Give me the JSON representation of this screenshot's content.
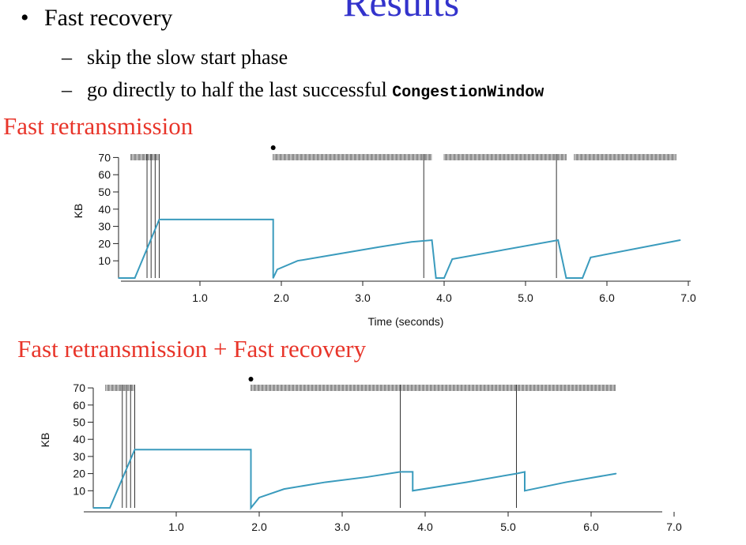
{
  "slide": {
    "title": "Results",
    "bullet": "Fast recovery",
    "sub1": "skip the slow start phase",
    "sub2_prefix": "go directly to half the last successful ",
    "sub2_code": "CongestionWindow",
    "bullet_mark": "•",
    "dash_mark": "–"
  },
  "colors": {
    "heading": "#e8352a",
    "title": "#3333cc",
    "series": "#3a9bbd"
  },
  "chart_data": [
    {
      "type": "line",
      "title": "Fast retransmission",
      "xlabel": "Time (seconds)",
      "ylabel": "KB",
      "xlim": [
        0,
        7.0
      ],
      "ylim": [
        0,
        70
      ],
      "x_ticks": [
        "1.0",
        "2.0",
        "3.0",
        "4.0",
        "5.0",
        "6.0",
        "7.0"
      ],
      "y_ticks": [
        "10",
        "20",
        "30",
        "40",
        "50",
        "60",
        "70"
      ],
      "series": [
        {
          "x": [
            0,
            0.2,
            0.5,
            0.5,
            1.9,
            1.9,
            1.95,
            2.2,
            2.7,
            3.2,
            3.6,
            3.85,
            3.9,
            4.0,
            4.1,
            5.4,
            5.5,
            5.6,
            5.7,
            5.8,
            6.9
          ],
          "y": [
            0,
            0,
            34,
            34,
            34,
            0,
            5,
            10,
            14,
            18,
            21,
            22,
            0,
            0,
            11,
            22,
            0,
            0,
            0,
            12,
            22
          ]
        }
      ],
      "markers": {
        "vertical_lines_x": [
          0.35,
          0.4,
          0.45,
          0.5,
          3.75,
          5.38
        ],
        "tick_rows": [
          [
            0.15,
            0.5
          ],
          [
            1.9,
            3.85
          ],
          [
            4.0,
            5.5
          ],
          [
            5.6,
            6.85
          ]
        ],
        "dot_x": 1.9
      }
    },
    {
      "type": "line",
      "title": "Fast retransmission + Fast recovery",
      "ylabel": "KB",
      "xlim": [
        0,
        7.0
      ],
      "ylim": [
        0,
        70
      ],
      "x_ticks": [
        "1.0",
        "2.0",
        "3.0",
        "4.0",
        "5.0",
        "6.0",
        "7.0"
      ],
      "y_ticks": [
        "10",
        "20",
        "30",
        "40",
        "50",
        "60",
        "70"
      ],
      "series": [
        {
          "x": [
            0,
            0.2,
            0.5,
            0.5,
            1.9,
            1.9,
            2.0,
            2.3,
            2.8,
            3.3,
            3.7,
            3.85,
            3.85,
            4.5,
            5.1,
            5.2,
            5.2,
            5.7,
            6.3
          ],
          "y": [
            0,
            0,
            34,
            34,
            34,
            0,
            6,
            11,
            15,
            18,
            21,
            21,
            10,
            15,
            20,
            21,
            10,
            15,
            20
          ]
        }
      ],
      "markers": {
        "vertical_lines_x": [
          0.35,
          0.4,
          0.45,
          0.5,
          3.7,
          5.1
        ],
        "tick_rows": [
          [
            0.15,
            0.5
          ],
          [
            1.9,
            6.3
          ]
        ],
        "dot_x": 1.9
      }
    }
  ]
}
